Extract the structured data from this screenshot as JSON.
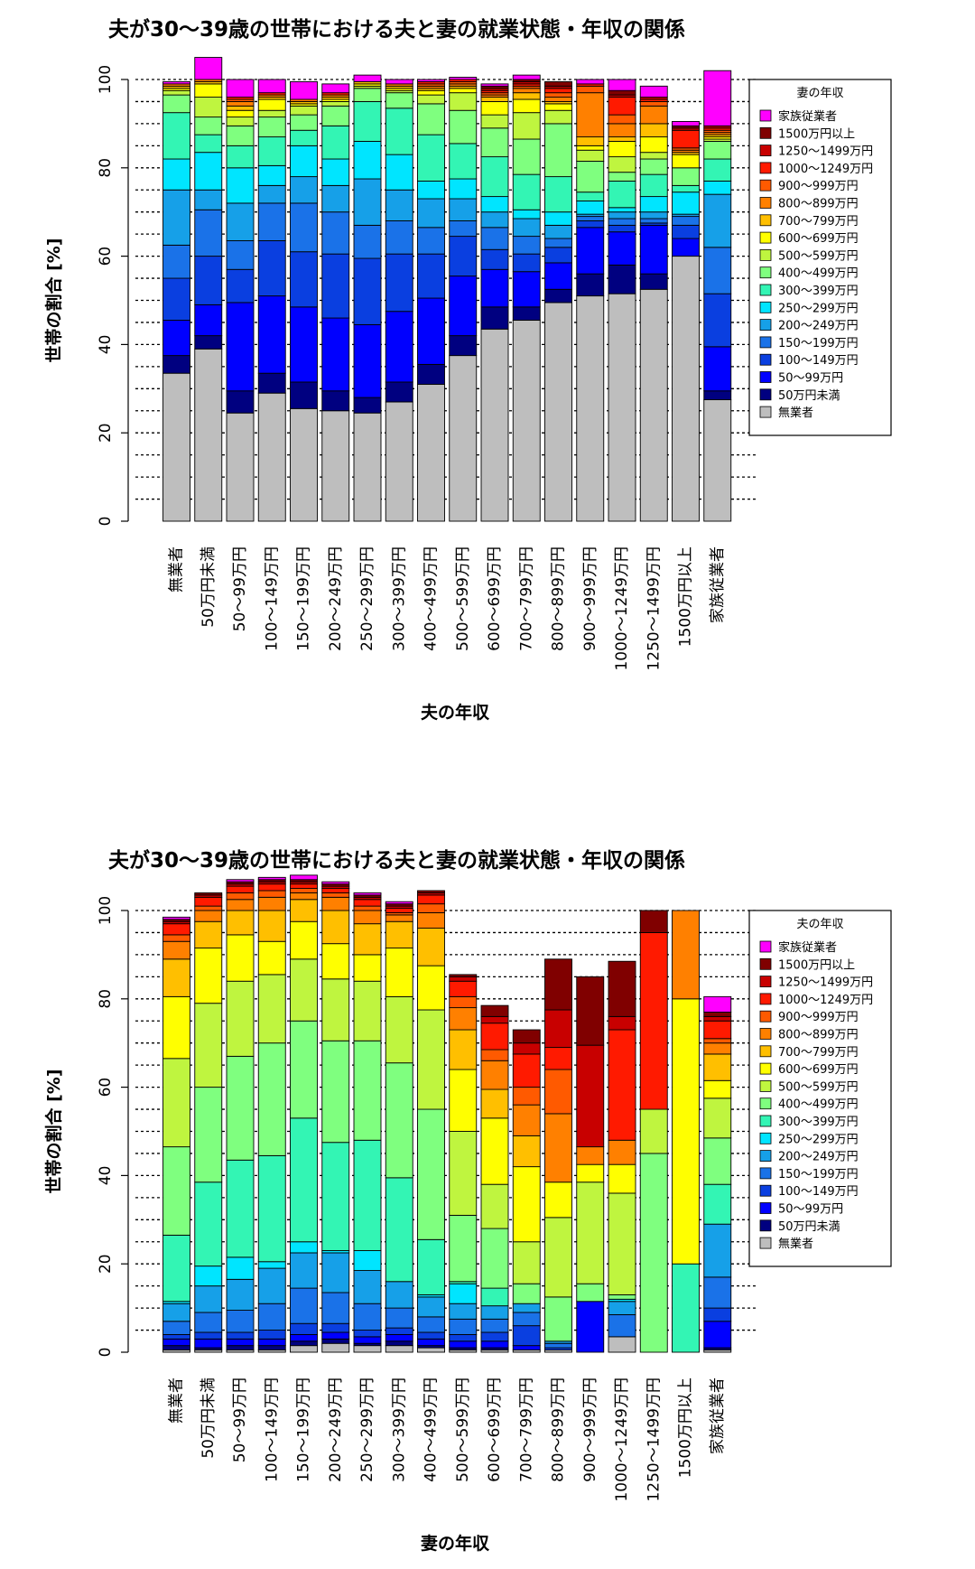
{
  "chart_data": [
    {
      "type": "bar",
      "stacked": true,
      "title": "夫が30～39歳の世帯における夫と妻の就業状態・年収の関係",
      "xlabel": "夫の年収",
      "ylabel": "世帯の割合 [%]",
      "ylim": [
        0,
        100
      ],
      "yticks": [
        "0",
        "20",
        "40",
        "60",
        "80",
        "100"
      ],
      "grid": "dotted-horizontal",
      "legend_position": "top-right",
      "legend_title": "妻の年収",
      "categories": [
        "無業者",
        "50万円未満",
        "50～99万円",
        "100～149万円",
        "150～199万円",
        "200～249万円",
        "250～299万円",
        "300～399万円",
        "400～499万円",
        "500～599万円",
        "600～699万円",
        "700～799万円",
        "800～899万円",
        "900～999万円",
        "1000～1249万円",
        "1250～1499万円",
        "1500万円以上",
        "家族従業者"
      ],
      "series": [
        {
          "name": "無業者",
          "color": "#bebebe",
          "values": [
            33.5,
            39,
            24.5,
            29,
            25.5,
            25,
            24.5,
            27,
            31,
            37.5,
            43.5,
            45.5,
            49.5,
            51,
            51.5,
            52.5,
            60,
            27.5
          ]
        },
        {
          "name": "50万円未満",
          "color": "#000080",
          "values": [
            4,
            3,
            5,
            4.5,
            6,
            4.5,
            3.5,
            4.5,
            4.5,
            4.5,
            5,
            3,
            3,
            5,
            6.5,
            3.5,
            0,
            2
          ]
        },
        {
          "name": "50～99万円",
          "color": "#0000ff",
          "values": [
            8,
            7,
            20,
            17.5,
            17,
            16.5,
            16.5,
            16,
            15,
            13.5,
            8.5,
            8,
            6,
            10.5,
            7.5,
            11,
            4,
            10
          ]
        },
        {
          "name": "100～149万円",
          "color": "#0a3fe0",
          "values": [
            9.5,
            11,
            7.5,
            12.5,
            12.5,
            14.5,
            15,
            13,
            10,
            9,
            4.5,
            4,
            3.5,
            1.5,
            1.5,
            0.5,
            3,
            12
          ]
        },
        {
          "name": "150～199万円",
          "color": "#1a72e8",
          "values": [
            7.5,
            10.5,
            6.5,
            8.5,
            11,
            9.5,
            7.5,
            7.5,
            6,
            3.5,
            5,
            4,
            2,
            1,
            1.5,
            1,
            2,
            10.5
          ]
        },
        {
          "name": "200～249万円",
          "color": "#16a0e8",
          "values": [
            12.5,
            4.5,
            8.5,
            4,
            6,
            6,
            10.5,
            7,
            6.5,
            5,
            3.5,
            4,
            3,
            0.5,
            1.5,
            1.5,
            0.5,
            12
          ]
        },
        {
          "name": "250～299万円",
          "color": "#00e5ff",
          "values": [
            7,
            8.5,
            8,
            4.5,
            7,
            6,
            8.5,
            8,
            4,
            4.5,
            3.5,
            2,
            3,
            3,
            1,
            3.5,
            5,
            3
          ]
        },
        {
          "name": "300～399万円",
          "color": "#33f5b4",
          "values": [
            10.5,
            4,
            5,
            6.5,
            3.5,
            7.5,
            9,
            10.5,
            10.5,
            8,
            9,
            8,
            8,
            2,
            6,
            5,
            1.5,
            5
          ]
        },
        {
          "name": "400～499万円",
          "color": "#7fff7f",
          "values": [
            4,
            4,
            4.5,
            4.5,
            3.5,
            4.5,
            3,
            3.5,
            7,
            7.5,
            6.5,
            8,
            12,
            7,
            2,
            3.5,
            4,
            4
          ]
        },
        {
          "name": "500～599万円",
          "color": "#bff53f",
          "values": [
            1,
            4.5,
            2,
            1.5,
            2,
            1,
            0.5,
            0.5,
            2,
            4,
            3,
            6,
            3,
            2.5,
            3.5,
            1.5,
            0,
            0.5
          ]
        },
        {
          "name": "600～699万円",
          "color": "#ffff00",
          "values": [
            0.5,
            3,
            1.5,
            2.5,
            0.5,
            0.5,
            0.5,
            0.5,
            1,
            1,
            3,
            3,
            1.5,
            1,
            3.5,
            3.5,
            3,
            0.5
          ]
        },
        {
          "name": "700～799万円",
          "color": "#ffbf00",
          "values": [
            0.5,
            0.5,
            1,
            0.5,
            0.5,
            0.5,
            0.5,
            0.5,
            0.5,
            0.5,
            1,
            1.5,
            0.5,
            2,
            1,
            3,
            0.5,
            0.5
          ]
        },
        {
          "name": "800～899万円",
          "color": "#ff8000",
          "values": [
            0.5,
            0.5,
            1,
            0.5,
            0.5,
            0.5,
            0,
            0.5,
            0.5,
            0.5,
            0.5,
            1,
            1,
            10,
            3,
            4,
            0.5,
            0.5
          ]
        },
        {
          "name": "900～999万円",
          "color": "#ff5a00",
          "values": [
            0,
            0,
            0.5,
            0,
            0,
            0,
            0,
            0,
            0.5,
            0.5,
            0.5,
            0.5,
            1,
            1.5,
            2,
            1,
            0.5,
            0.5
          ]
        },
        {
          "name": "1000～1249万円",
          "color": "#ff1a00",
          "values": [
            0,
            0,
            0.5,
            0.5,
            0,
            0.5,
            0,
            0,
            0.5,
            0.5,
            0.5,
            0.5,
            1,
            0.5,
            4,
            0.5,
            4,
            0.5
          ]
        },
        {
          "name": "1250～1499万円",
          "color": "#c80000",
          "values": [
            0,
            0,
            0,
            0,
            0,
            0,
            0,
            0,
            0,
            0,
            0.5,
            0.5,
            0.5,
            0,
            0.5,
            0.5,
            0.5,
            0.5
          ]
        },
        {
          "name": "1500万円以上",
          "color": "#800000",
          "values": [
            0,
            0,
            0,
            0,
            0,
            0,
            0,
            0,
            0,
            0,
            0.5,
            0.5,
            1,
            0,
            1,
            0,
            0.5,
            0
          ]
        },
        {
          "name": "家族従業者",
          "color": "#ff00ff",
          "values": [
            0.5,
            5,
            4,
            3,
            4,
            2,
            1.5,
            1,
            0.5,
            0.5,
            0.5,
            1,
            0,
            1,
            2.5,
            2.5,
            1,
            12.5
          ]
        }
      ]
    },
    {
      "type": "bar",
      "stacked": true,
      "title": "夫が30～39歳の世帯における夫と妻の就業状態・年収の関係",
      "xlabel": "妻の年収",
      "ylabel": "世帯の割合 [%]",
      "ylim": [
        0,
        100
      ],
      "yticks": [
        "0",
        "20",
        "40",
        "60",
        "80",
        "100"
      ],
      "grid": "dotted-horizontal",
      "legend_position": "top-right",
      "legend_title": "夫の年収",
      "categories": [
        "無業者",
        "50万円未満",
        "50～99万円",
        "100～149万円",
        "150～199万円",
        "200～249万円",
        "250～299万円",
        "300～399万円",
        "400～499万円",
        "500～599万円",
        "600～699万円",
        "700～799万円",
        "800～899万円",
        "900～999万円",
        "1000～1249万円",
        "1250～1499万円",
        "1500万円以上",
        "家族従業者"
      ],
      "series": [
        {
          "name": "無業者",
          "color": "#bebebe",
          "values": [
            0.5,
            0.5,
            0.5,
            0.5,
            1.5,
            2,
            1.5,
            1.5,
            1,
            0.5,
            0.5,
            0.5,
            0.5,
            0,
            3.5,
            0,
            0,
            0.5
          ]
        },
        {
          "name": "50万円未満",
          "color": "#000080",
          "values": [
            1,
            0.5,
            1,
            1,
            1,
            1,
            0.5,
            1,
            0.5,
            0.5,
            0.5,
            0,
            0,
            0,
            0,
            0,
            0,
            0.5
          ]
        },
        {
          "name": "50～99万円",
          "color": "#0000ff",
          "values": [
            1.5,
            2,
            1.5,
            1.5,
            1.5,
            1.5,
            1.5,
            1.5,
            1.5,
            1.5,
            1.5,
            1,
            0,
            11.5,
            0,
            0,
            0,
            6
          ]
        },
        {
          "name": "100～149万円",
          "color": "#0a3fe0",
          "values": [
            1,
            1.5,
            1.5,
            2,
            2.5,
            2,
            1.5,
            1.5,
            1.5,
            1.5,
            2,
            4.5,
            0.5,
            0,
            0,
            0,
            0,
            3
          ]
        },
        {
          "name": "150～199万円",
          "color": "#1a72e8",
          "values": [
            3,
            4.5,
            5,
            6,
            8,
            7,
            6,
            4.5,
            3.5,
            3.5,
            3,
            3,
            1,
            0,
            5,
            0,
            0,
            7
          ]
        },
        {
          "name": "200～249万円",
          "color": "#16a0e8",
          "values": [
            4,
            6,
            7,
            8,
            8,
            9,
            7.5,
            6,
            4.5,
            3.5,
            3,
            2,
            0.5,
            0,
            3,
            0,
            0,
            12
          ]
        },
        {
          "name": "250～299万円",
          "color": "#00e5ff",
          "values": [
            0.5,
            4.5,
            5,
            1.5,
            2.5,
            0.5,
            4.5,
            0,
            0.5,
            4.5,
            0,
            0,
            0,
            0,
            0.5,
            0,
            0,
            0
          ]
        },
        {
          "name": "300～399万円",
          "color": "#33f5b4",
          "values": [
            15,
            19,
            22,
            24,
            28,
            24.5,
            25,
            23.5,
            12.5,
            0.5,
            4,
            0,
            0,
            0,
            0,
            0,
            20,
            9
          ]
        },
        {
          "name": "400～499万円",
          "color": "#7fff7f",
          "values": [
            20,
            21.5,
            23.5,
            25.5,
            22,
            23,
            22.5,
            26,
            29.5,
            15,
            13.5,
            4.5,
            10,
            4,
            1,
            45,
            0,
            10.5
          ]
        },
        {
          "name": "500～599万円",
          "color": "#bff53f",
          "values": [
            20,
            19,
            17,
            15.5,
            14,
            14,
            13.5,
            15,
            22.5,
            19,
            10,
            9.5,
            18,
            23,
            23,
            10,
            0,
            9
          ]
        },
        {
          "name": "600～699万円",
          "color": "#ffff00",
          "values": [
            14,
            12.5,
            10.5,
            7.5,
            8.5,
            8,
            6,
            11,
            10,
            14,
            15,
            17,
            8,
            4,
            6.5,
            0,
            60,
            4
          ]
        },
        {
          "name": "700～799万円",
          "color": "#ffbf00",
          "values": [
            8.5,
            6,
            5.5,
            7,
            5,
            7.5,
            7,
            6,
            8.5,
            9,
            6.5,
            7,
            0,
            0,
            0,
            0,
            0,
            6
          ]
        },
        {
          "name": "800～899万円",
          "color": "#ff8000",
          "values": [
            4,
            2.5,
            2.5,
            3,
            1.5,
            3,
            3,
            1.5,
            3.5,
            5,
            6.5,
            7,
            15.5,
            4,
            5.5,
            0,
            20,
            2.5
          ]
        },
        {
          "name": "900～999万円",
          "color": "#ff5a00",
          "values": [
            1.5,
            1,
            1.5,
            1.5,
            1,
            1,
            1,
            0.5,
            2,
            2.5,
            2.5,
            4,
            10,
            0,
            0,
            0,
            0,
            1
          ]
        },
        {
          "name": "1000～1249万円",
          "color": "#ff1a00",
          "values": [
            2.5,
            2,
            1.5,
            1.5,
            1,
            1,
            1.5,
            1,
            2,
            3.5,
            6,
            7.5,
            5,
            0,
            25,
            40,
            0,
            4
          ]
        },
        {
          "name": "1250～1499万円",
          "color": "#c80000",
          "values": [
            0.5,
            0.5,
            0.5,
            0.5,
            0.5,
            0.5,
            0.5,
            0.5,
            0.5,
            1,
            1.5,
            2.5,
            8.5,
            23,
            3,
            0,
            0,
            1
          ]
        },
        {
          "name": "1500万円以上",
          "color": "#800000",
          "values": [
            0.5,
            0.5,
            0.5,
            0.5,
            0.5,
            0.5,
            0.5,
            0.5,
            0.5,
            0.5,
            2.5,
            3,
            11.5,
            15.5,
            12.5,
            5,
            0,
            1
          ]
        },
        {
          "name": "家族従業者",
          "color": "#ff00ff",
          "values": [
            0.5,
            0,
            0.5,
            0.5,
            1,
            0.5,
            0.5,
            0.5,
            0,
            0,
            0,
            0,
            0,
            0,
            0,
            0,
            0,
            3.5
          ]
        }
      ]
    }
  ]
}
